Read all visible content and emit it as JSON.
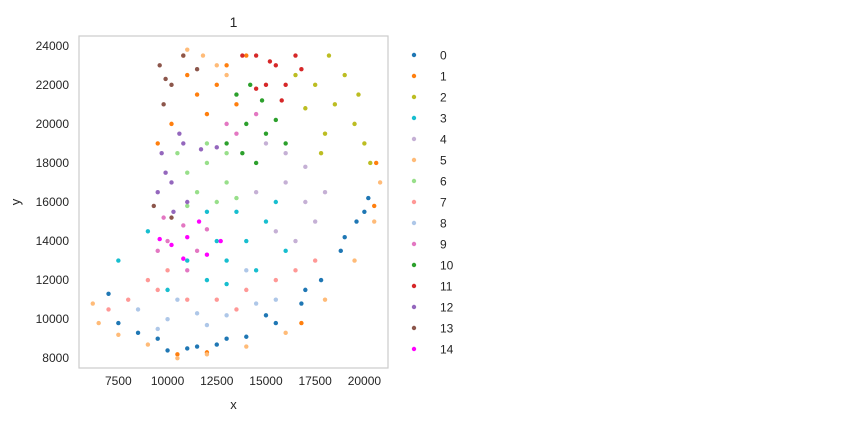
{
  "chart_data": {
    "type": "scatter",
    "title": "1",
    "xlabel": "x",
    "ylabel": "y",
    "xlim": [
      5500,
      21200
    ],
    "ylim": [
      7500,
      24500
    ],
    "xticks": [
      7500,
      10000,
      12500,
      15000,
      17500,
      20000
    ],
    "xtick_labels": [
      "7500",
      "10000",
      "12500",
      "15000",
      "17500",
      "20000"
    ],
    "yticks": [
      8000,
      10000,
      12000,
      14000,
      16000,
      18000,
      20000,
      22000,
      24000
    ],
    "ytick_labels": [
      "8000",
      "10000",
      "12000",
      "14000",
      "16000",
      "18000",
      "20000",
      "22000",
      "24000"
    ],
    "grid": false,
    "legend_position": "outside-right",
    "series": [
      {
        "name": "0",
        "color": "#1f77b4",
        "points": [
          [
            10000,
            8400
          ],
          [
            11000,
            8500
          ],
          [
            12500,
            8700
          ],
          [
            14000,
            9100
          ],
          [
            15500,
            9800
          ],
          [
            16800,
            10800
          ],
          [
            17800,
            12000
          ],
          [
            18800,
            13500
          ],
          [
            19600,
            15000
          ],
          [
            20200,
            16200
          ],
          [
            8500,
            9300
          ],
          [
            7500,
            9800
          ],
          [
            7000,
            11300
          ],
          [
            9500,
            9000
          ],
          [
            13000,
            9000
          ],
          [
            17000,
            11500
          ],
          [
            19000,
            14200
          ],
          [
            20000,
            15500
          ],
          [
            15000,
            10200
          ],
          [
            11500,
            8600
          ]
        ]
      },
      {
        "name": "1",
        "color": "#ff7f0e",
        "points": [
          [
            10500,
            8200
          ],
          [
            12000,
            8300
          ],
          [
            11000,
            22500
          ],
          [
            12500,
            22000
          ],
          [
            13500,
            21000
          ],
          [
            12000,
            20500
          ],
          [
            10200,
            20000
          ],
          [
            11500,
            21500
          ],
          [
            9500,
            19000
          ],
          [
            14000,
            23500
          ],
          [
            16800,
            9800
          ],
          [
            20600,
            18000
          ],
          [
            20500,
            15800
          ],
          [
            13000,
            23000
          ],
          [
            10800,
            23500
          ]
        ]
      },
      {
        "name": "2",
        "color": "#bcbd22",
        "points": [
          [
            17500,
            22000
          ],
          [
            18500,
            21000
          ],
          [
            19500,
            20000
          ],
          [
            20000,
            19000
          ],
          [
            18000,
            19500
          ],
          [
            17000,
            20800
          ],
          [
            19000,
            22500
          ],
          [
            16500,
            22500
          ],
          [
            18200,
            23500
          ],
          [
            20300,
            18000
          ],
          [
            19700,
            21500
          ],
          [
            17800,
            18500
          ]
        ]
      },
      {
        "name": "3",
        "color": "#17becf",
        "points": [
          [
            12000,
            12000
          ],
          [
            13000,
            13000
          ],
          [
            14000,
            14000
          ],
          [
            15000,
            15000
          ],
          [
            13500,
            15500
          ],
          [
            12500,
            14000
          ],
          [
            11000,
            13000
          ],
          [
            14500,
            12500
          ],
          [
            12000,
            15500
          ],
          [
            15500,
            16000
          ],
          [
            10000,
            11500
          ],
          [
            13000,
            11800
          ],
          [
            7500,
            13000
          ],
          [
            9000,
            14500
          ],
          [
            16000,
            13500
          ]
        ]
      },
      {
        "name": "4",
        "color": "#c5b0d5",
        "points": [
          [
            16000,
            17000
          ],
          [
            17000,
            16000
          ],
          [
            15500,
            14500
          ],
          [
            16500,
            14000
          ],
          [
            17500,
            15000
          ],
          [
            15000,
            19000
          ],
          [
            16000,
            18500
          ],
          [
            14500,
            16500
          ],
          [
            18000,
            16500
          ],
          [
            17000,
            17800
          ]
        ]
      },
      {
        "name": "5",
        "color": "#ffbb78",
        "points": [
          [
            6500,
            9800
          ],
          [
            7500,
            9200
          ],
          [
            9000,
            8700
          ],
          [
            10500,
            8000
          ],
          [
            12000,
            8200
          ],
          [
            14000,
            8600
          ],
          [
            16000,
            9300
          ],
          [
            18000,
            11000
          ],
          [
            19500,
            13000
          ],
          [
            20500,
            15000
          ],
          [
            6200,
            10800
          ],
          [
            11000,
            23800
          ],
          [
            12500,
            23000
          ],
          [
            11800,
            23500
          ],
          [
            13000,
            22500
          ],
          [
            20800,
            17000
          ]
        ]
      },
      {
        "name": "6",
        "color": "#98df8a",
        "points": [
          [
            11000,
            17500
          ],
          [
            12000,
            18000
          ],
          [
            13000,
            17000
          ],
          [
            11500,
            16500
          ],
          [
            12500,
            16000
          ],
          [
            10500,
            18500
          ],
          [
            12000,
            19000
          ],
          [
            13000,
            18500
          ],
          [
            11000,
            15800
          ],
          [
            13500,
            16200
          ]
        ]
      },
      {
        "name": "7",
        "color": "#ff9896",
        "points": [
          [
            8000,
            11000
          ],
          [
            9500,
            11500
          ],
          [
            11000,
            11000
          ],
          [
            12500,
            11000
          ],
          [
            14000,
            11500
          ],
          [
            15500,
            12000
          ],
          [
            16500,
            12500
          ],
          [
            10000,
            12500
          ],
          [
            9000,
            12000
          ],
          [
            13500,
            10500
          ],
          [
            17500,
            13000
          ],
          [
            7000,
            10500
          ]
        ]
      },
      {
        "name": "8",
        "color": "#aec7e8",
        "points": [
          [
            8500,
            10500
          ],
          [
            10000,
            10000
          ],
          [
            11500,
            10300
          ],
          [
            13000,
            10200
          ],
          [
            14500,
            10800
          ],
          [
            12000,
            9700
          ],
          [
            15500,
            11000
          ],
          [
            9500,
            9500
          ],
          [
            14000,
            12500
          ],
          [
            10500,
            11000
          ]
        ]
      },
      {
        "name": "9",
        "color": "#e377c2",
        "points": [
          [
            10000,
            14000
          ],
          [
            11500,
            13500
          ],
          [
            10800,
            14800
          ],
          [
            12000,
            14600
          ],
          [
            9500,
            13500
          ],
          [
            13500,
            19500
          ],
          [
            14500,
            20500
          ],
          [
            13000,
            20000
          ],
          [
            11000,
            12500
          ],
          [
            9800,
            15200
          ]
        ]
      },
      {
        "name": "10",
        "color": "#2ca02c",
        "points": [
          [
            13500,
            21500
          ],
          [
            14000,
            20000
          ],
          [
            15000,
            19500
          ],
          [
            14500,
            18000
          ],
          [
            16000,
            19000
          ],
          [
            13000,
            19000
          ],
          [
            14200,
            22000
          ],
          [
            15500,
            20200
          ],
          [
            14800,
            21200
          ],
          [
            13800,
            18500
          ]
        ]
      },
      {
        "name": "11",
        "color": "#d62728",
        "points": [
          [
            14500,
            23500
          ],
          [
            15500,
            23000
          ],
          [
            16500,
            23500
          ],
          [
            15000,
            22000
          ],
          [
            16000,
            22000
          ],
          [
            14500,
            21800
          ],
          [
            15800,
            21200
          ],
          [
            16800,
            22800
          ],
          [
            15200,
            23200
          ],
          [
            13800,
            23500
          ]
        ]
      },
      {
        "name": "12",
        "color": "#9467bd",
        "points": [
          [
            9700,
            18500
          ],
          [
            10200,
            17000
          ],
          [
            10800,
            19000
          ],
          [
            11000,
            16000
          ],
          [
            9900,
            17500
          ],
          [
            12500,
            18800
          ],
          [
            10300,
            15500
          ],
          [
            11700,
            18700
          ],
          [
            9500,
            16500
          ],
          [
            10600,
            19500
          ]
        ]
      },
      {
        "name": "13",
        "color": "#8c564b",
        "points": [
          [
            9600,
            23000
          ],
          [
            10200,
            22000
          ],
          [
            10800,
            23500
          ],
          [
            9800,
            21000
          ],
          [
            9300,
            15800
          ],
          [
            10200,
            15200
          ],
          [
            11500,
            22800
          ],
          [
            9900,
            22300
          ]
        ]
      },
      {
        "name": "14",
        "color": "#ff00ff",
        "points": [
          [
            11000,
            14200
          ],
          [
            12000,
            13300
          ],
          [
            10200,
            13800
          ],
          [
            11600,
            15000
          ],
          [
            12700,
            14000
          ],
          [
            9600,
            14100
          ],
          [
            10800,
            13100
          ]
        ]
      }
    ]
  }
}
